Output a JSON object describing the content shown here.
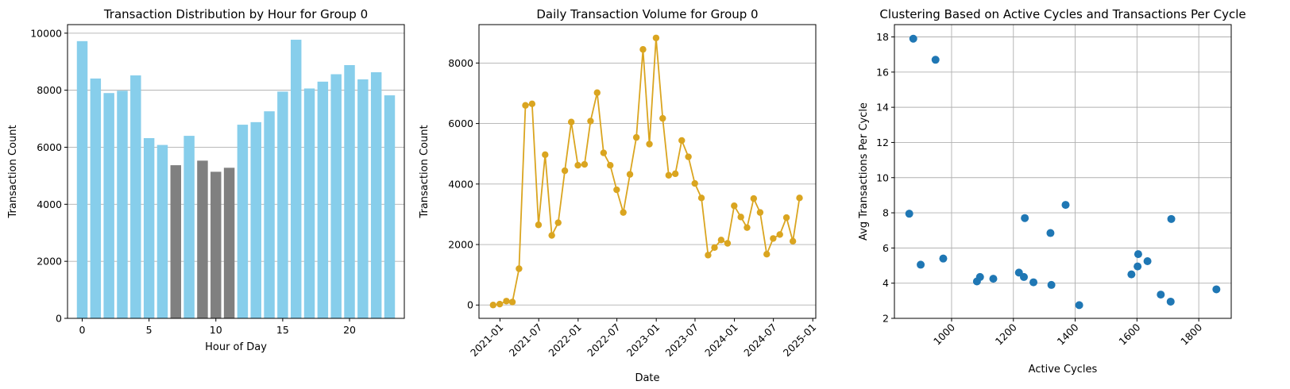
{
  "chart_data": [
    {
      "type": "bar",
      "title": "Transaction Distribution by Hour for Group 0",
      "xlabel": "Hour of Day",
      "ylabel": "Transaction Count",
      "categories": [
        0,
        1,
        2,
        3,
        4,
        5,
        6,
        7,
        8,
        9,
        10,
        11,
        12,
        13,
        14,
        15,
        16,
        17,
        18,
        19,
        20,
        21,
        22,
        23
      ],
      "values": [
        9720,
        8410,
        7900,
        7980,
        8520,
        6320,
        6080,
        5370,
        6400,
        5530,
        5140,
        5280,
        6790,
        6880,
        7260,
        7950,
        9770,
        8060,
        8300,
        8560,
        8880,
        8380,
        8630,
        7820
      ],
      "highlight": [
        7,
        9,
        10,
        11
      ],
      "bar_color": "#87ceeb",
      "highlight_color": "#808080",
      "xticks": [
        0,
        5,
        10,
        15,
        20
      ],
      "yticks": [
        0,
        2000,
        4000,
        6000,
        8000,
        10000
      ],
      "ylim": [
        0,
        10300
      ],
      "xlim": [
        -1.1,
        24.1
      ],
      "grid": "y"
    },
    {
      "type": "line",
      "title": "Daily Transaction Volume for Group 0",
      "xlabel": "Date",
      "ylabel": "Transaction Count",
      "x": [
        "2020-11-30",
        "2020-12-31",
        "2021-01-31",
        "2021-02-28",
        "2021-03-31",
        "2021-04-30",
        "2021-05-31",
        "2021-06-30",
        "2021-07-31",
        "2021-08-31",
        "2021-09-30",
        "2021-10-31",
        "2021-11-30",
        "2021-12-31",
        "2022-01-31",
        "2022-02-28",
        "2022-03-31",
        "2022-04-30",
        "2022-05-31",
        "2022-06-30",
        "2022-07-31",
        "2022-08-31",
        "2022-09-30",
        "2022-10-31",
        "2022-11-30",
        "2022-12-31",
        "2023-01-31",
        "2023-02-28",
        "2023-03-31",
        "2023-04-30",
        "2023-05-31",
        "2023-06-30",
        "2023-07-31",
        "2023-08-31",
        "2023-09-30",
        "2023-10-31",
        "2023-11-30",
        "2023-12-31",
        "2024-01-31",
        "2024-02-29",
        "2024-03-31",
        "2024-04-30",
        "2024-05-31",
        "2024-06-30",
        "2024-07-31",
        "2024-08-31",
        "2024-09-30",
        "2024-10-31"
      ],
      "values": [
        0,
        30,
        130,
        100,
        1200,
        6600,
        6650,
        2650,
        4970,
        2300,
        2720,
        4440,
        6050,
        4620,
        4650,
        6080,
        7020,
        5030,
        4620,
        3810,
        3060,
        4320,
        5540,
        8450,
        5320,
        8830,
        6170,
        4290,
        4340,
        5440,
        4900,
        4020,
        3540,
        1650,
        1900,
        2150,
        2040,
        3280,
        2910,
        2560,
        3520,
        3060,
        1680,
        2200,
        2330,
        2890,
        2110,
        3540
      ],
      "color": "#daa520",
      "xticks": [
        "2021-01",
        "2021-07",
        "2022-01",
        "2022-07",
        "2023-01",
        "2023-07",
        "2024-01",
        "2024-07",
        "2025-01"
      ],
      "yticks": [
        0,
        2000,
        4000,
        6000,
        8000
      ],
      "ylim": [
        -440,
        9270
      ],
      "xlim": [
        "2020-09-25",
        "2025-01-15"
      ],
      "grid": "y"
    },
    {
      "type": "scatter",
      "title": "Clustering Based on Active Cycles and Transactions Per Cycle",
      "xlabel": "Active Cycles",
      "ylabel": "Avg Transactions Per Cycle",
      "x": [
        863,
        876,
        948,
        900,
        973,
        1082,
        1092,
        1135,
        1218,
        1234,
        1237,
        1265,
        1320,
        1323,
        1369,
        1413,
        1582,
        1602,
        1604,
        1634,
        1677,
        1709,
        1711,
        1857
      ],
      "y": [
        7.95,
        17.9,
        16.7,
        5.05,
        5.4,
        4.1,
        4.35,
        4.25,
        4.6,
        4.35,
        7.7,
        4.05,
        6.85,
        3.9,
        8.45,
        2.75,
        4.5,
        4.95,
        5.65,
        5.25,
        3.35,
        2.95,
        7.65,
        3.65
      ],
      "color": "#1f77b4",
      "xticks": [
        1000,
        1200,
        1400,
        1600,
        1800
      ],
      "yticks": [
        2,
        4,
        6,
        8,
        10,
        12,
        14,
        16,
        18
      ],
      "xlim": [
        815,
        1905
      ],
      "ylim": [
        2.0,
        18.7
      ],
      "grid": "both"
    }
  ]
}
